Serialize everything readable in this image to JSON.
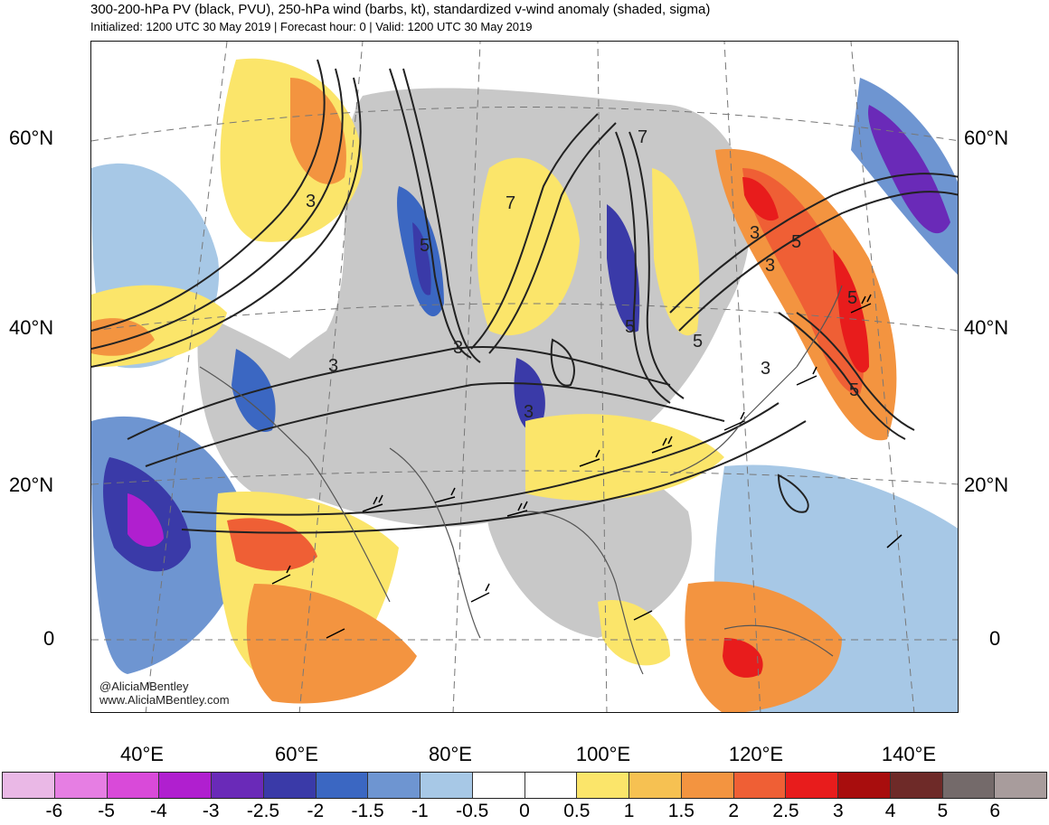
{
  "header": {
    "title": "300-200-hPa PV (black, PVU), 250-hPa wind (barbs, kt), standardized v-wind anomaly (shaded, sigma)",
    "subtitle": "Initialized: 1200 UTC 30 May 2019 | Forecast hour: 0 | Valid: 1200 UTC 30 May 2019"
  },
  "map": {
    "lat_labels": [
      "60°N",
      "40°N",
      "20°N",
      "0"
    ],
    "lon_labels": [
      "40°E",
      "60°E",
      "80°E",
      "100°E",
      "120°E",
      "140°E"
    ],
    "contour_labels": [
      "3",
      "5",
      "7",
      "3",
      "3",
      "5",
      "3",
      "5",
      "7",
      "3",
      "5",
      "5",
      "3",
      "5",
      "3"
    ],
    "credit_handle": "@AliciaMBentley",
    "credit_url": "www.AliciaMBentley.com"
  },
  "colorbar": {
    "labels": [
      "-6",
      "-5",
      "-4",
      "-3",
      "-2.5",
      "-2",
      "-1.5",
      "-1",
      "-0.5",
      "0",
      "0.5",
      "1",
      "1.5",
      "2",
      "2.5",
      "3",
      "4",
      "5",
      "6"
    ],
    "colors": [
      "#eab8e6",
      "#e67ee3",
      "#d94ad9",
      "#b01fcf",
      "#6a2ab8",
      "#3a3aa8",
      "#3b67c2",
      "#6e95d1",
      "#a7c8e6",
      "#ffffff",
      "#ffffff",
      "#fbe56a",
      "#f6c152",
      "#f39440",
      "#ef5f35",
      "#e81c1c",
      "#a80d0d",
      "#6e2a28",
      "#746a6a",
      "#a89c9c"
    ]
  },
  "colors": {
    "land_gray": "#c8c8c8",
    "contour": "#222222",
    "coast": "#555555"
  }
}
